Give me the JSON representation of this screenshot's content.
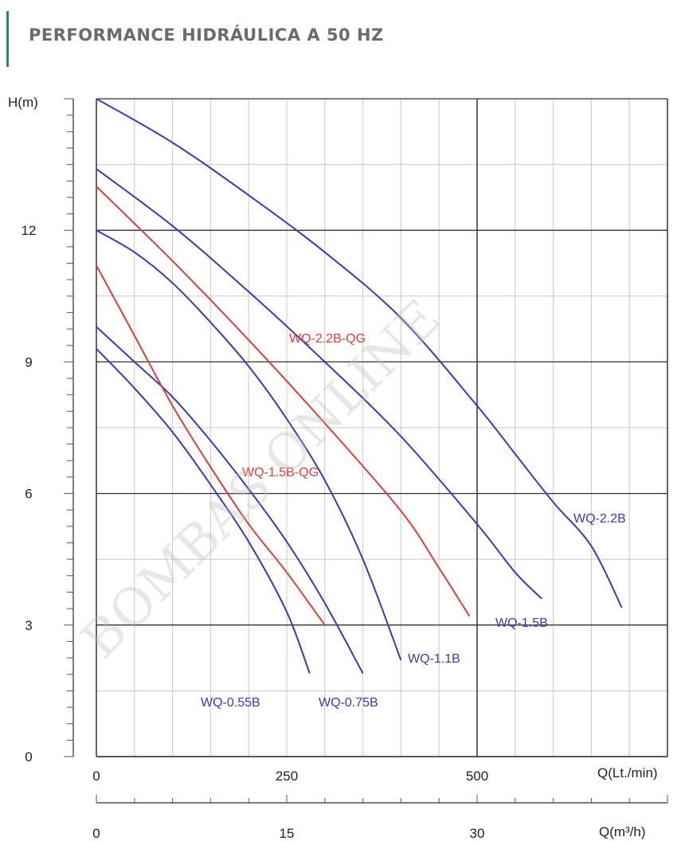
{
  "page": {
    "title": "PERFORMANCE HIDRÁULICA A 50 HZ",
    "watermark": "BOMBAS ONLINE"
  },
  "colors": {
    "grid_major": "#333333",
    "grid_minor": "#c8c8c8",
    "blue_series": "#3a3ab4",
    "red_series": "#e03c3c",
    "title_accent": "#2f7f86"
  },
  "chart_data": {
    "type": "line",
    "title": "PERFORMANCE HIDRÁULICA A 50 HZ",
    "ylabel": "H(m)",
    "xlabel": "Q(Lt./min)",
    "xlabel_secondary": "Q(m³/h)",
    "xlim": [
      0,
      750
    ],
    "ylim": [
      0,
      15
    ],
    "x_ticks": [
      0,
      250,
      500
    ],
    "x_ticks_secondary": [
      0,
      15,
      30
    ],
    "y_ticks": [
      0,
      3,
      6,
      9,
      12
    ],
    "grid": true,
    "series": [
      {
        "name": "WQ-0.55B",
        "color": "blue",
        "x": [
          0,
          50,
          100,
          150,
          200,
          250,
          280
        ],
        "y": [
          9.3,
          8.4,
          7.4,
          6.2,
          4.9,
          3.3,
          1.9
        ]
      },
      {
        "name": "WQ-0.75B",
        "color": "blue",
        "x": [
          0,
          50,
          100,
          150,
          200,
          250,
          300,
          350
        ],
        "y": [
          9.8,
          9.0,
          8.2,
          7.2,
          6.1,
          4.9,
          3.5,
          1.9
        ]
      },
      {
        "name": "WQ-1.5B-QG",
        "color": "red",
        "x": [
          0,
          50,
          100,
          150,
          200,
          250,
          300
        ],
        "y": [
          11.2,
          9.6,
          8.0,
          6.6,
          5.3,
          4.2,
          3.0
        ]
      },
      {
        "name": "WQ-1.1B",
        "color": "blue",
        "x": [
          0,
          50,
          100,
          150,
          200,
          250,
          300,
          350,
          400
        ],
        "y": [
          12.0,
          11.5,
          10.8,
          9.9,
          8.9,
          7.7,
          6.3,
          4.5,
          2.2
        ]
      },
      {
        "name": "WQ-2.2B-QG",
        "color": "red",
        "x": [
          0,
          100,
          200,
          300,
          400,
          450,
          490
        ],
        "y": [
          13.0,
          11.3,
          9.5,
          7.6,
          5.6,
          4.3,
          3.2
        ]
      },
      {
        "name": "WQ-1.5B",
        "color": "blue",
        "x": [
          0,
          100,
          200,
          300,
          400,
          500,
          550,
          585
        ],
        "y": [
          13.4,
          12.1,
          10.6,
          9.0,
          7.3,
          5.3,
          4.2,
          3.6
        ]
      },
      {
        "name": "WQ-2.2B",
        "color": "blue",
        "x": [
          0,
          100,
          200,
          300,
          400,
          500,
          550,
          600,
          650,
          690
        ],
        "y": [
          15.0,
          14.0,
          12.8,
          11.5,
          10.0,
          8.0,
          6.9,
          5.8,
          4.8,
          3.4
        ]
      }
    ]
  }
}
